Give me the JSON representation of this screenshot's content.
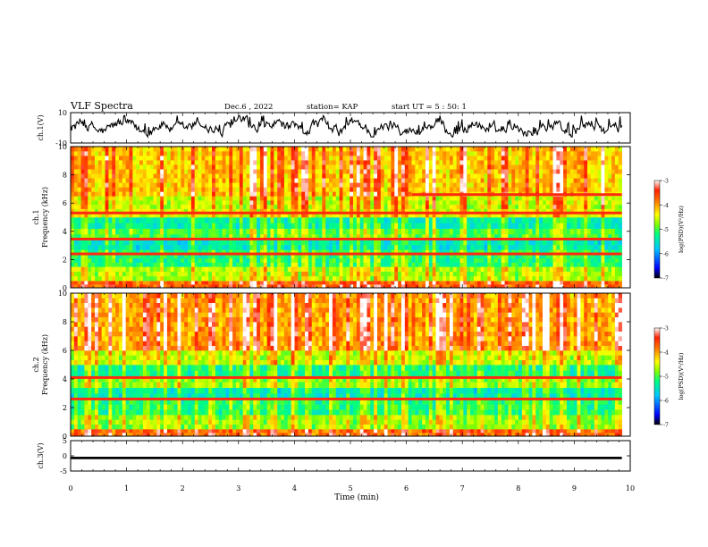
{
  "header": {
    "title": "VLF Spectra",
    "date": "Dec.6 , 2022",
    "station": "station= KAP",
    "start": "start UT = 5 : 50: 1"
  },
  "chart_data": [
    {
      "type": "line",
      "name": "ch1-waveform",
      "ylabel": "ch.1(V)",
      "ylim": [
        -10,
        10
      ],
      "yticks": [
        "10",
        "-10"
      ],
      "xlim": [
        0,
        10
      ],
      "trace_end_min": 9.85,
      "color": "#000000"
    },
    {
      "type": "heatmap",
      "name": "ch1-spectrogram",
      "ylabel": "ch.1\nFrequency (kHz)",
      "xlim": [
        0,
        10
      ],
      "ylim": [
        0,
        10
      ],
      "yticks": [
        "0",
        "2",
        "4",
        "6",
        "8",
        "10"
      ],
      "data_end_min": 9.85,
      "bands": [
        {
          "from": 0.0,
          "to": 0.5,
          "level": -3.7
        },
        {
          "from": 0.5,
          "to": 1.5,
          "level": -4.7
        },
        {
          "from": 1.5,
          "to": 2.7,
          "level": -5.2
        },
        {
          "from": 2.7,
          "to": 3.4,
          "level": -5.5
        },
        {
          "from": 3.4,
          "to": 4.2,
          "level": -5.0
        },
        {
          "from": 4.2,
          "to": 5.0,
          "level": -5.4
        },
        {
          "from": 5.0,
          "to": 5.6,
          "level": -4.5
        },
        {
          "from": 5.6,
          "to": 6.5,
          "level": -4.6
        },
        {
          "from": 6.5,
          "to": 10.0,
          "level": -4.2
        }
      ],
      "lines": [
        {
          "freq": 5.3,
          "t0": 0,
          "t1": 9.85
        },
        {
          "freq": 3.45,
          "t0": 0,
          "t1": 9.85
        },
        {
          "freq": 2.4,
          "t0": 0,
          "t1": 9.85
        },
        {
          "freq": 6.6,
          "t0": 6.1,
          "t1": 9.85
        }
      ]
    },
    {
      "type": "heatmap",
      "name": "ch2-spectrogram",
      "ylabel": "ch.2\nFrequency (kHz)",
      "xlim": [
        0,
        10
      ],
      "ylim": [
        0,
        10
      ],
      "yticks": [
        "0",
        "2",
        "4",
        "6",
        "8",
        "10"
      ],
      "data_end_min": 9.85,
      "bands": [
        {
          "from": 0.0,
          "to": 0.5,
          "level": -3.8
        },
        {
          "from": 0.5,
          "to": 1.5,
          "level": -4.8
        },
        {
          "from": 1.5,
          "to": 2.6,
          "level": -5.2
        },
        {
          "from": 2.6,
          "to": 3.4,
          "level": -5.5
        },
        {
          "from": 3.4,
          "to": 4.2,
          "level": -4.8
        },
        {
          "from": 4.2,
          "to": 5.0,
          "level": -5.3
        },
        {
          "from": 5.0,
          "to": 6.0,
          "level": -4.6
        },
        {
          "from": 6.0,
          "to": 10.0,
          "level": -4.0
        }
      ],
      "lines": [
        {
          "freq": 4.1,
          "t0": 0,
          "t1": 9.85
        },
        {
          "freq": 2.6,
          "t0": 0,
          "t1": 9.85
        }
      ]
    },
    {
      "type": "line",
      "name": "ch3-waveform",
      "ylabel": "ch.3(V)",
      "ylim": [
        -5,
        5
      ],
      "yticks": [
        "5",
        "0",
        "-5"
      ],
      "xlim": [
        0,
        10
      ],
      "trace_end_min": 9.85,
      "band_center": -0.7,
      "band_halfwidth": 0.4,
      "color": "#000000"
    }
  ],
  "xaxis": {
    "label": "Time (min)",
    "ticks": [
      "0",
      "1",
      "2",
      "3",
      "4",
      "5",
      "6",
      "7",
      "8",
      "9",
      "10"
    ]
  },
  "colorbars": [
    {
      "name": "ch1-colorbar",
      "label": "log(PSD)(V²/Hz)",
      "range": [
        -7,
        -3
      ],
      "ticks": [
        "-3",
        "-4",
        "-5",
        "-6",
        "-7"
      ]
    },
    {
      "name": "ch2-colorbar",
      "label": "log(PSD)(V²/Hz)",
      "range": [
        -7,
        -3
      ],
      "ticks": [
        "-3",
        "-4",
        "-5",
        "-6",
        "-7"
      ]
    }
  ],
  "colormap": [
    "#000000",
    "#0000ff",
    "#00c8ff",
    "#00ff80",
    "#80ff00",
    "#ffff00",
    "#ff8000",
    "#ff2000",
    "#ffffff"
  ]
}
